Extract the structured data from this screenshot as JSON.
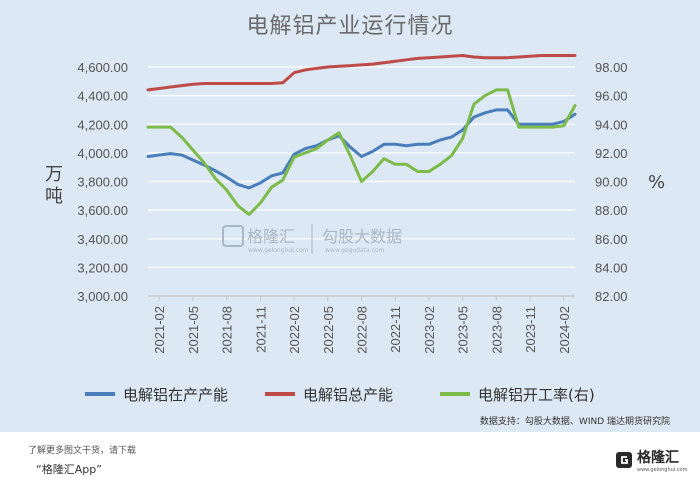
{
  "chart_data": {
    "type": "line",
    "title": "电解铝产业运行情况",
    "ylabel_left": "万吨",
    "ylabel_right": "%",
    "ylim_left": [
      3000,
      4600
    ],
    "ylim_right": [
      82,
      98
    ],
    "yticks_left": [
      "4,600.00",
      "4,400.00",
      "4,200.00",
      "4,000.00",
      "3,800.00",
      "3,600.00",
      "3,400.00",
      "3,200.00",
      "3,000.00"
    ],
    "yticks_right": [
      "98.00",
      "96.00",
      "94.00",
      "92.00",
      "90.00",
      "88.00",
      "86.00",
      "84.00",
      "82.00"
    ],
    "xticks": [
      "2021-02",
      "2021-05",
      "2021-08",
      "2021-11",
      "2022-02",
      "2022-05",
      "2022-08",
      "2022-11",
      "2023-02",
      "2023-05",
      "2023-08",
      "2023-11",
      "2024-02"
    ],
    "months": [
      "2021-01",
      "2021-02",
      "2021-03",
      "2021-04",
      "2021-05",
      "2021-06",
      "2021-07",
      "2021-08",
      "2021-09",
      "2021-10",
      "2021-11",
      "2021-12",
      "2022-01",
      "2022-02",
      "2022-03",
      "2022-04",
      "2022-05",
      "2022-06",
      "2022-07",
      "2022-08",
      "2022-09",
      "2022-10",
      "2022-11",
      "2022-12",
      "2023-01",
      "2023-02",
      "2023-03",
      "2023-04",
      "2023-05",
      "2023-06",
      "2023-07",
      "2023-08",
      "2023-09",
      "2023-10",
      "2023-11",
      "2023-12",
      "2024-01",
      "2024-02",
      "2024-03"
    ],
    "series": [
      {
        "name": "电解铝在产产能",
        "axis": "left",
        "color": "#4a7ebb",
        "values": [
          3975,
          3985,
          3995,
          3985,
          3950,
          3915,
          3875,
          3830,
          3780,
          3755,
          3790,
          3840,
          3860,
          3990,
          4030,
          4050,
          4090,
          4120,
          4040,
          3975,
          4010,
          4060,
          4060,
          4050,
          4060,
          4060,
          4090,
          4110,
          4160,
          4250,
          4280,
          4300,
          4300,
          4200,
          4200,
          4200,
          4200,
          4220,
          4270
        ]
      },
      {
        "name": "电解铝总产能",
        "axis": "left",
        "color": "#be4b48",
        "values": [
          4440,
          4450,
          4460,
          4470,
          4480,
          4485,
          4485,
          4485,
          4485,
          4485,
          4485,
          4485,
          4490,
          4560,
          4580,
          4590,
          4600,
          4605,
          4610,
          4615,
          4620,
          4630,
          4640,
          4650,
          4660,
          4665,
          4670,
          4675,
          4680,
          4670,
          4665,
          4665,
          4665,
          4670,
          4675,
          4680,
          4680,
          4680,
          4680
        ]
      },
      {
        "name": "电解铝开工率(右)",
        "axis": "right",
        "color": "#7cbb4a",
        "values": [
          93.8,
          93.8,
          93.8,
          93.1,
          92.2,
          91.3,
          90.2,
          89.4,
          88.3,
          87.7,
          88.5,
          89.6,
          90.1,
          91.7,
          92.0,
          92.3,
          92.9,
          93.4,
          91.8,
          90.0,
          90.7,
          91.6,
          91.2,
          91.2,
          90.7,
          90.7,
          91.2,
          91.8,
          93.0,
          95.4,
          96.0,
          96.4,
          96.4,
          93.8,
          93.8,
          93.8,
          93.8,
          93.9,
          95.3
        ]
      }
    ],
    "legend_position": "bottom",
    "grid": "horizontal"
  },
  "source_note": "数据支持：勾股大数据、WIND 瑞达期货研究院",
  "watermark": {
    "brand": "格隆汇",
    "brand_url": "www.gelonghui.com",
    "partner": "勾股大数据",
    "partner_url": "www.gogudata.com"
  },
  "footer": {
    "note": "了解更多图文干货，请下载",
    "app": "“格隆汇App”",
    "brand": "格隆汇",
    "brand_sub": "www.gelonghui.com"
  },
  "colors": {
    "background": "#dce8f4",
    "gridline": "#ffffff",
    "accent": "#2f6fb0"
  }
}
